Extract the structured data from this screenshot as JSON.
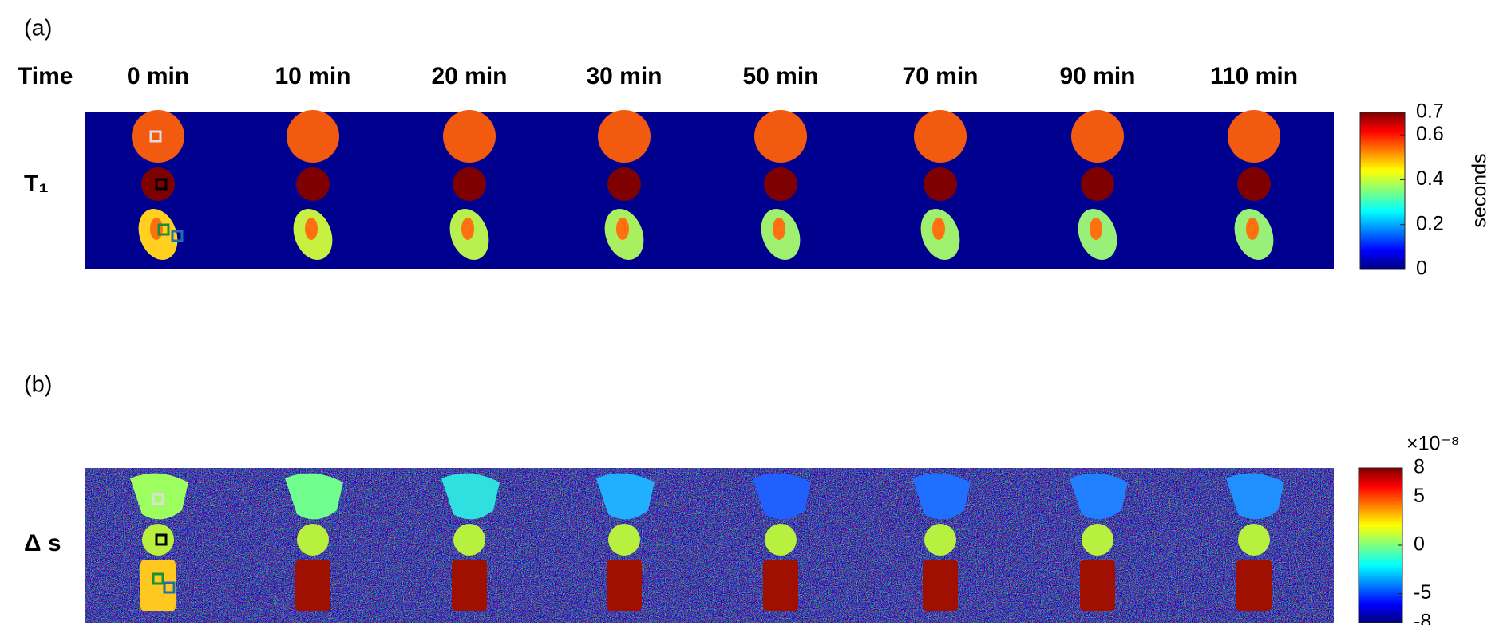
{
  "panel_a": {
    "label": "(a)",
    "row_header": "Time",
    "times": [
      "0 min",
      "10 min",
      "20 min",
      "30 min",
      "50 min",
      "70 min",
      "90 min",
      "110 min"
    ],
    "row_label": "T₁",
    "colorbar": {
      "lim": [
        0,
        0.7
      ],
      "ticks": [
        0,
        0.2,
        0.4,
        0.6,
        0.7
      ],
      "unit": "seconds"
    }
  },
  "panel_b": {
    "label": "(b)",
    "row_label": "Δ s",
    "colorbar": {
      "lim": [
        -8,
        8
      ],
      "ticks": [
        -8,
        -5,
        0,
        5,
        8
      ],
      "multiplier": "×10⁻⁸"
    }
  }
}
